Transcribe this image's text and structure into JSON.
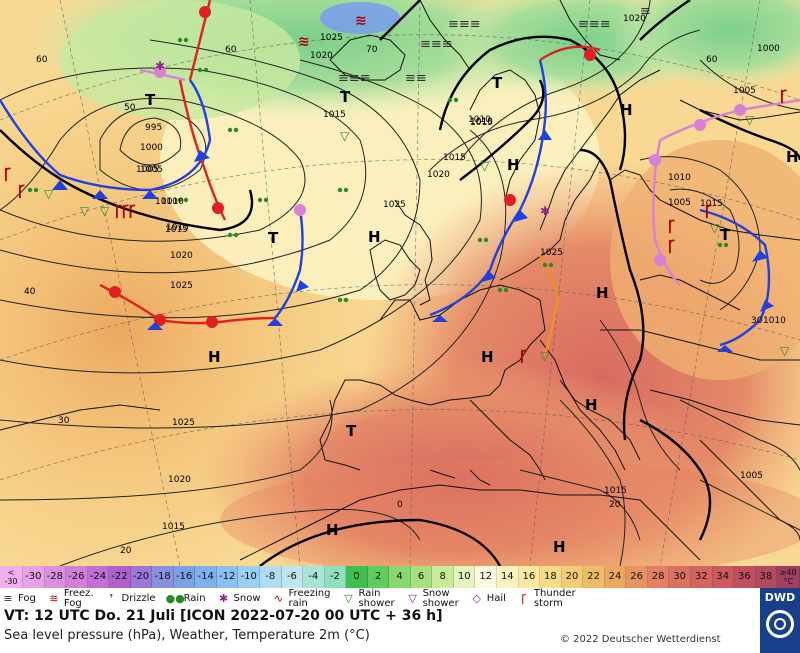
{
  "title_line": "VT: 12 UTC Do.  21 Juli [ICON 2022-07-20  00 UTC + 36 h]",
  "subtitle": "Sea level pressure (hPa), Weather, Temperature 2m (°C)",
  "copyright": "© 2022 Deutscher Wetterdienst",
  "logo_text": "DWD",
  "scale": {
    "low_label_top": "<",
    "low_label_bottom": "-30",
    "high_label_top": "≥40",
    "high_label_bottom": "°C",
    "steps": [
      {
        "v": "-30",
        "c": "#e8a0e8"
      },
      {
        "v": "-28",
        "c": "#dc8fe0"
      },
      {
        "v": "-26",
        "c": "#d080d8"
      },
      {
        "v": "-24",
        "c": "#c070d4"
      },
      {
        "v": "-22",
        "c": "#b060cc"
      },
      {
        "v": "-20",
        "c": "#9a78d8"
      },
      {
        "v": "-18",
        "c": "#8890e0"
      },
      {
        "v": "-16",
        "c": "#7aa0e8"
      },
      {
        "v": "-14",
        "c": "#80b0f0"
      },
      {
        "v": "-12",
        "c": "#8cc0f4"
      },
      {
        "v": "-10",
        "c": "#9ccff6"
      },
      {
        "v": "-8",
        "c": "#b0dcf8"
      },
      {
        "v": "-6",
        "c": "#bfe6f0"
      },
      {
        "v": "-4",
        "c": "#a8e4d8"
      },
      {
        "v": "-2",
        "c": "#90e0c0"
      },
      {
        "v": "0",
        "c": "#3cc050"
      },
      {
        "v": "2",
        "c": "#60cc60"
      },
      {
        "v": "4",
        "c": "#88d870"
      },
      {
        "v": "6",
        "c": "#a8e080"
      },
      {
        "v": "8",
        "c": "#c8ec98"
      },
      {
        "v": "10",
        "c": "#e6f6c0"
      },
      {
        "v": "12",
        "c": "#fbfbe0"
      },
      {
        "v": "14",
        "c": "#fbf4c0"
      },
      {
        "v": "16",
        "c": "#fbeaa0"
      },
      {
        "v": "18",
        "c": "#f8dc88"
      },
      {
        "v": "20",
        "c": "#f4cc74"
      },
      {
        "v": "22",
        "c": "#f0bc68"
      },
      {
        "v": "24",
        "c": "#eca860"
      },
      {
        "v": "26",
        "c": "#e89460"
      },
      {
        "v": "28",
        "c": "#e48060"
      },
      {
        "v": "30",
        "c": "#dc7060"
      },
      {
        "v": "32",
        "c": "#d46460"
      },
      {
        "v": "34",
        "c": "#cc5a60"
      },
      {
        "v": "36",
        "c": "#c05060"
      },
      {
        "v": "38",
        "c": "#b44a60"
      }
    ],
    "low_color": "#f0b0f0",
    "high_color": "#a04060"
  },
  "legend": [
    {
      "key": "fog",
      "icon": "≡",
      "icon_name": "fog-icon",
      "lines": [
        "Fog"
      ],
      "color": "#333"
    },
    {
      "key": "freez_fog",
      "icon": "≋",
      "icon_name": "freezing-fog-icon",
      "lines": [
        "Freez.",
        "Fog"
      ],
      "color": "#b00"
    },
    {
      "key": "drizzle",
      "icon": "❜",
      "icon_name": "drizzle-icon",
      "lines": [
        "Drizzle"
      ],
      "color": "#2a8a2a"
    },
    {
      "key": "rain",
      "icon": "●●",
      "icon_name": "rain-icon",
      "lines": [
        "Rain"
      ],
      "color": "#2a8a2a"
    },
    {
      "key": "snow",
      "icon": "✱",
      "icon_name": "snow-icon",
      "lines": [
        "Snow"
      ],
      "color": "#8a2a8a"
    },
    {
      "key": "freezing_rain",
      "icon": "∿",
      "icon_name": "freezing-rain-icon",
      "lines": [
        "Freezing",
        "rain"
      ],
      "color": "#b00"
    },
    {
      "key": "rain_shower",
      "icon": "▽",
      "icon_name": "rain-shower-icon",
      "lines": [
        "Rain",
        "shower"
      ],
      "color": "#2a8a2a"
    },
    {
      "key": "snow_shower",
      "icon": "▽",
      "icon_name": "snow-shower-icon",
      "lines": [
        "Snow",
        "shower"
      ],
      "color": "#8a2a8a"
    },
    {
      "key": "hail",
      "icon": "◇",
      "icon_name": "hail-icon",
      "lines": [
        "Hail"
      ],
      "color": "#8a2a8a"
    },
    {
      "key": "thunderstorm",
      "icon": "Ꞅ",
      "icon_name": "thunderstorm-icon",
      "lines": [
        "Thunder",
        "storm"
      ],
      "color": "#b00"
    }
  ],
  "map": {
    "isobar_labels": [
      "1025",
      "1020",
      "1015",
      "1010",
      "1005",
      "1000",
      "995",
      "1025",
      "1020",
      "1015",
      "1010",
      "1005",
      "1000",
      "1025",
      "1020",
      "1015",
      "1010",
      "1025",
      "1020",
      "1015",
      "1010",
      "1005",
      "1015",
      "1020",
      "1025",
      "1015",
      "1005",
      "1010",
      "1005",
      "1010",
      "1015",
      "1015"
    ],
    "temp_labels": [
      "60",
      "60",
      "50",
      "70",
      "60",
      "40",
      "30",
      "20",
      "0",
      "20",
      "30"
    ],
    "pressure_centers": [
      {
        "t": "T",
        "kind": "low"
      },
      {
        "t": "T",
        "kind": "low"
      },
      {
        "t": "T",
        "kind": "low"
      },
      {
        "t": "T",
        "kind": "low"
      },
      {
        "t": "T",
        "kind": "low"
      },
      {
        "t": "T",
        "kind": "low"
      },
      {
        "t": "H",
        "kind": "high"
      },
      {
        "t": "H",
        "kind": "high"
      },
      {
        "t": "H",
        "kind": "high"
      },
      {
        "t": "H",
        "kind": "high"
      },
      {
        "t": "H",
        "kind": "high"
      },
      {
        "t": "H",
        "kind": "high"
      },
      {
        "t": "H",
        "kind": "high"
      },
      {
        "t": "H",
        "kind": "high"
      },
      {
        "t": "H",
        "kind": "high"
      },
      {
        "t": "H",
        "kind": "high"
      }
    ]
  }
}
